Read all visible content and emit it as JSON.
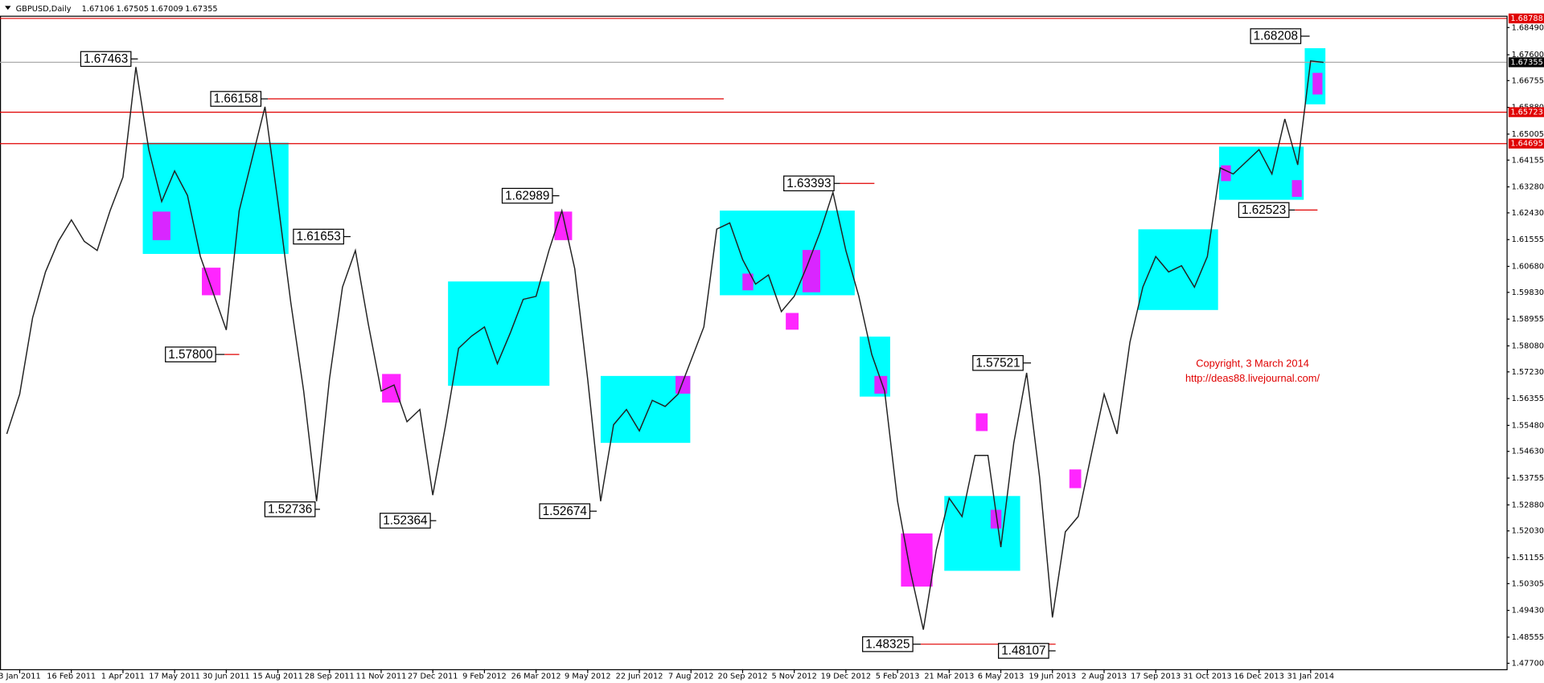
{
  "chart_data": {
    "type": "line",
    "header": {
      "symbol": "GBPUSD,Daily",
      "open": 1.67106,
      "high": 1.67505,
      "low": 1.67009,
      "close": 1.67355
    },
    "categories": [
      null,
      "3 Jan 2011",
      null,
      null,
      null,
      "16 Feb 2011",
      null,
      null,
      null,
      "1 Apr 2011",
      null,
      null,
      null,
      "17 May 2011",
      null,
      null,
      null,
      "30 Jun 2011",
      null,
      null,
      null,
      "15 Aug 2011",
      null,
      null,
      null,
      "28 Sep 2011",
      null,
      null,
      null,
      "11 Nov 2011",
      null,
      null,
      null,
      "27 Dec 2011",
      null,
      null,
      null,
      "9 Feb 2012",
      null,
      null,
      null,
      "26 Mar 2012",
      null,
      null,
      null,
      "9 May 2012",
      null,
      null,
      null,
      "22 Jun 2012",
      null,
      null,
      null,
      "7 Aug 2012",
      null,
      null,
      null,
      "20 Sep 2012",
      null,
      null,
      null,
      "5 Nov 2012",
      null,
      null,
      null,
      "19 Dec 2012",
      null,
      null,
      null,
      "5 Feb 2013",
      null,
      null,
      null,
      "21 Mar 2013",
      null,
      null,
      null,
      "6 May 2013",
      null,
      null,
      null,
      "19 Jun 2013",
      null,
      null,
      null,
      "2 Aug 2013",
      null,
      null,
      null,
      "17 Sep 2013",
      null,
      null,
      null,
      "31 Oct 2013",
      null,
      null,
      null,
      "16 Dec 2013",
      null,
      null,
      null,
      "31 Jan 2014",
      null
    ],
    "series": [
      {
        "name": "GBPUSD",
        "color": "#222222",
        "values": [
          1.552,
          1.565,
          1.59,
          1.605,
          1.615,
          1.622,
          1.615,
          1.612,
          1.625,
          1.636,
          1.672,
          1.645,
          1.628,
          1.638,
          1.63,
          1.61,
          1.598,
          1.586,
          1.625,
          1.642,
          1.659,
          1.628,
          1.595,
          1.566,
          1.53,
          1.57,
          1.6,
          1.612,
          1.588,
          1.566,
          1.568,
          1.556,
          1.56,
          1.532,
          1.555,
          1.58,
          1.584,
          1.587,
          1.575,
          1.585,
          1.596,
          1.597,
          1.612,
          1.625,
          1.606,
          1.57,
          1.53,
          1.555,
          1.56,
          1.553,
          1.563,
          1.561,
          1.565,
          1.576,
          1.587,
          1.619,
          1.621,
          1.609,
          1.601,
          1.604,
          1.592,
          1.597,
          1.607,
          1.618,
          1.631,
          1.612,
          1.597,
          1.578,
          1.566,
          1.53,
          1.507,
          1.488,
          1.514,
          1.531,
          1.525,
          1.545,
          1.545,
          1.515,
          1.549,
          1.572,
          1.538,
          1.492,
          1.52,
          1.525,
          1.545,
          1.565,
          1.552,
          1.582,
          1.6,
          1.61,
          1.605,
          1.607,
          1.6,
          1.61,
          1.639,
          1.637,
          1.641,
          1.645,
          1.637,
          1.655,
          1.64,
          1.674,
          1.6735
        ]
      }
    ],
    "ylim": [
      1.47506,
      1.68876
    ],
    "yticks": [
      {
        "value": 1.6849,
        "label": "1.68490"
      },
      {
        "value": 1.676,
        "label": "1.67600"
      },
      1.66755,
      {
        "value": 1.6588,
        "label": "1.65880"
      },
      1.65005,
      1.64155,
      {
        "value": 1.6328,
        "label": "1.63280"
      },
      {
        "value": 1.6243,
        "label": "1.62430"
      },
      1.61555,
      {
        "value": 1.6068,
        "label": "1.60680"
      },
      {
        "value": 1.5983,
        "label": "1.59830"
      },
      1.58955,
      {
        "value": 1.5808,
        "label": "1.58080"
      },
      {
        "value": 1.5723,
        "label": "1.57230"
      },
      1.56355,
      {
        "value": 1.5548,
        "label": "1.55480"
      },
      {
        "value": 1.5463,
        "label": "1.54630"
      },
      1.53755,
      {
        "value": 1.5288,
        "label": "1.52880"
      },
      {
        "value": 1.5203,
        "label": "1.52030"
      },
      1.51155,
      1.50305,
      {
        "value": 1.4943,
        "label": "1.49430"
      },
      1.48555,
      {
        "value": 1.477,
        "label": "1.47700"
      }
    ],
    "levels": [
      1.68788,
      1.65723,
      1.64695
    ],
    "annotations": [
      1.67463,
      1.66158,
      1.61653,
      {
        "value": 1.578,
        "label": "1.57800"
      },
      1.52736,
      1.52364,
      1.62989,
      1.52674,
      1.63393,
      1.48325,
      1.57521,
      1.48107,
      1.68208,
      1.62523
    ],
    "notes": [
      "Copyright, 3 March 2014",
      "http://deas88.livejournal.com/"
    ]
  }
}
